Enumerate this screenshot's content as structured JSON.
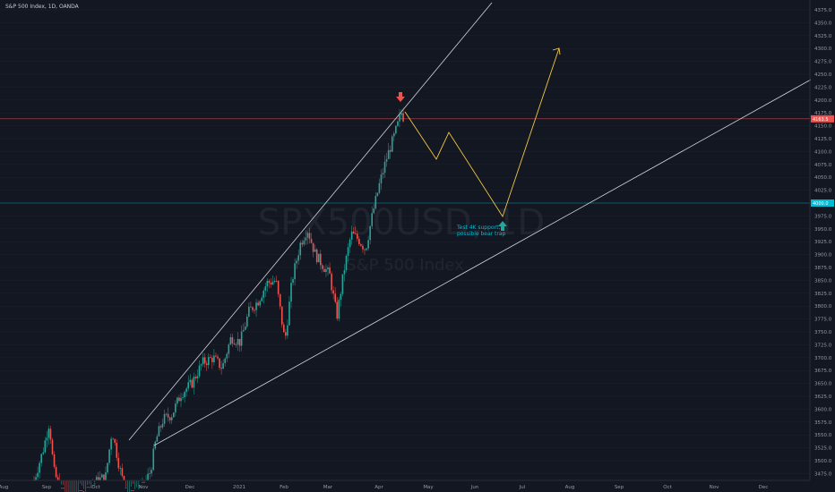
{
  "header": {
    "title": "S&P 500 Index, 1D, OANDA"
  },
  "watermark": {
    "symbol": "SPX500USD, 1D",
    "name": "S&P 500 Index"
  },
  "colors": {
    "up": "#26a69a",
    "down": "#ef5350",
    "background": "#131722",
    "trendline": "#d1d4dc",
    "projection": "#f2c744",
    "support": "#00bcd4",
    "resistance": "#ef5350"
  },
  "chart_data": {
    "type": "candlestick",
    "y_axis": {
      "ylim": [
        3460,
        4480
      ],
      "position": "right",
      "ticks": [
        "3475.0",
        "3500.0",
        "3525.0",
        "3550.0",
        "3575.0",
        "3600.0",
        "3625.0",
        "3650.0",
        "3675.0",
        "3700.0",
        "3725.0",
        "3750.0",
        "3775.0",
        "3800.0",
        "3825.0",
        "3850.0",
        "3875.0",
        "3900.0",
        "3925.0",
        "3950.0",
        "3975.0",
        "4025.0",
        "4050.0",
        "4075.0",
        "4100.0",
        "4125.0",
        "4150.0",
        "4175.0",
        "4200.0",
        "4225.0",
        "4250.0",
        "4275.0",
        "4300.0",
        "4325.0",
        "4350.0",
        "4375.0"
      ]
    },
    "x_axis": {
      "ticks": [
        "Aug",
        "Sep",
        "Oct",
        "Nov",
        "Dec",
        "2021",
        "Feb",
        "Mar",
        "Apr",
        "May",
        "Jun",
        "Jul",
        "Aug",
        "Sep",
        "Oct",
        "Nov",
        "Dec"
      ]
    },
    "price_tags": [
      {
        "label": "4163.5",
        "value": 4163.5,
        "color": "#ef5350"
      },
      {
        "label": "4000.0",
        "value": 4000.0,
        "color": "#00bcd4"
      }
    ],
    "horizontal_lines": [
      {
        "value": 4163.5,
        "color": "#ef5350"
      },
      {
        "value": 4000.0,
        "color": "#00bcd4"
      }
    ],
    "annotation": {
      "lines": [
        "Test 4K support,",
        "possible bear trap"
      ]
    }
  }
}
